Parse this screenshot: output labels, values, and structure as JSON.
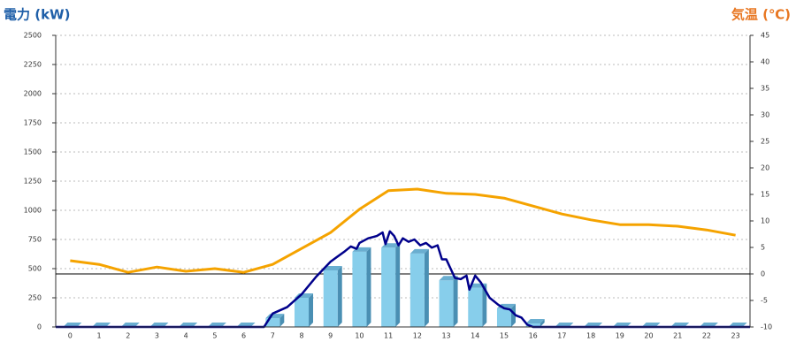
{
  "chart_data": {
    "type": "combo",
    "y_label": "電力 (kW)",
    "y2_label": "気温 (℃)",
    "categories": [
      "0",
      "1",
      "2",
      "3",
      "4",
      "5",
      "6",
      "7",
      "8",
      "9",
      "10",
      "11",
      "12",
      "13",
      "14",
      "15",
      "16",
      "17",
      "18",
      "19",
      "20",
      "21",
      "22",
      "23"
    ],
    "ylim": [
      0,
      2500
    ],
    "yticks": [
      0,
      250,
      500,
      750,
      1000,
      1250,
      1500,
      1750,
      2000,
      2250,
      2500
    ],
    "y2lim": [
      -10,
      45
    ],
    "y2ticks": [
      -10,
      -5,
      0,
      5,
      10,
      15,
      20,
      25,
      30,
      35,
      40,
      45
    ],
    "grid": true,
    "series": [
      {
        "type": "bar",
        "color": "#87ceeb",
        "values": [
          0,
          0,
          0,
          0,
          0,
          0,
          0,
          75,
          250,
          485,
          645,
          680,
          630,
          400,
          335,
          160,
          30,
          0,
          0,
          0,
          0,
          0,
          0,
          0
        ]
      },
      {
        "type": "line",
        "color": "#00008b",
        "x": [
          -0.5,
          6.7,
          7,
          7.5,
          8,
          8.5,
          9,
          9.5,
          9.7,
          9.9,
          10,
          10.3,
          10.6,
          10.8,
          10.9,
          11.05,
          11.2,
          11.35,
          11.5,
          11.7,
          11.9,
          12.1,
          12.3,
          12.5,
          12.7,
          12.85,
          13,
          13.3,
          13.5,
          13.7,
          13.8,
          14,
          14.2,
          14.5,
          14.8,
          15,
          15.2,
          15.4,
          15.6,
          15.8,
          16,
          23.5
        ],
        "values": [
          0,
          0,
          115,
          170,
          280,
          430,
          560,
          650,
          690,
          670,
          720,
          760,
          780,
          810,
          710,
          820,
          780,
          700,
          760,
          730,
          750,
          700,
          720,
          680,
          700,
          580,
          580,
          420,
          410,
          440,
          320,
          440,
          380,
          250,
          190,
          160,
          150,
          100,
          80,
          20,
          0,
          0
        ]
      },
      {
        "type": "line",
        "axis": "y2",
        "color": "#f5a300",
        "x": [
          0,
          1,
          2,
          3,
          4,
          5,
          6,
          7,
          8,
          9,
          10,
          11,
          12,
          13,
          14,
          15,
          16,
          17,
          18,
          19,
          20,
          21,
          22,
          23
        ],
        "values": [
          2.5,
          1.8,
          0.3,
          1.3,
          0.5,
          1,
          0.3,
          1.8,
          4.8,
          7.8,
          12.2,
          15.7,
          16,
          15.2,
          15,
          14.3,
          12.8,
          11.3,
          10.2,
          9.3,
          9.3,
          9,
          8.3,
          7.3
        ]
      }
    ]
  }
}
